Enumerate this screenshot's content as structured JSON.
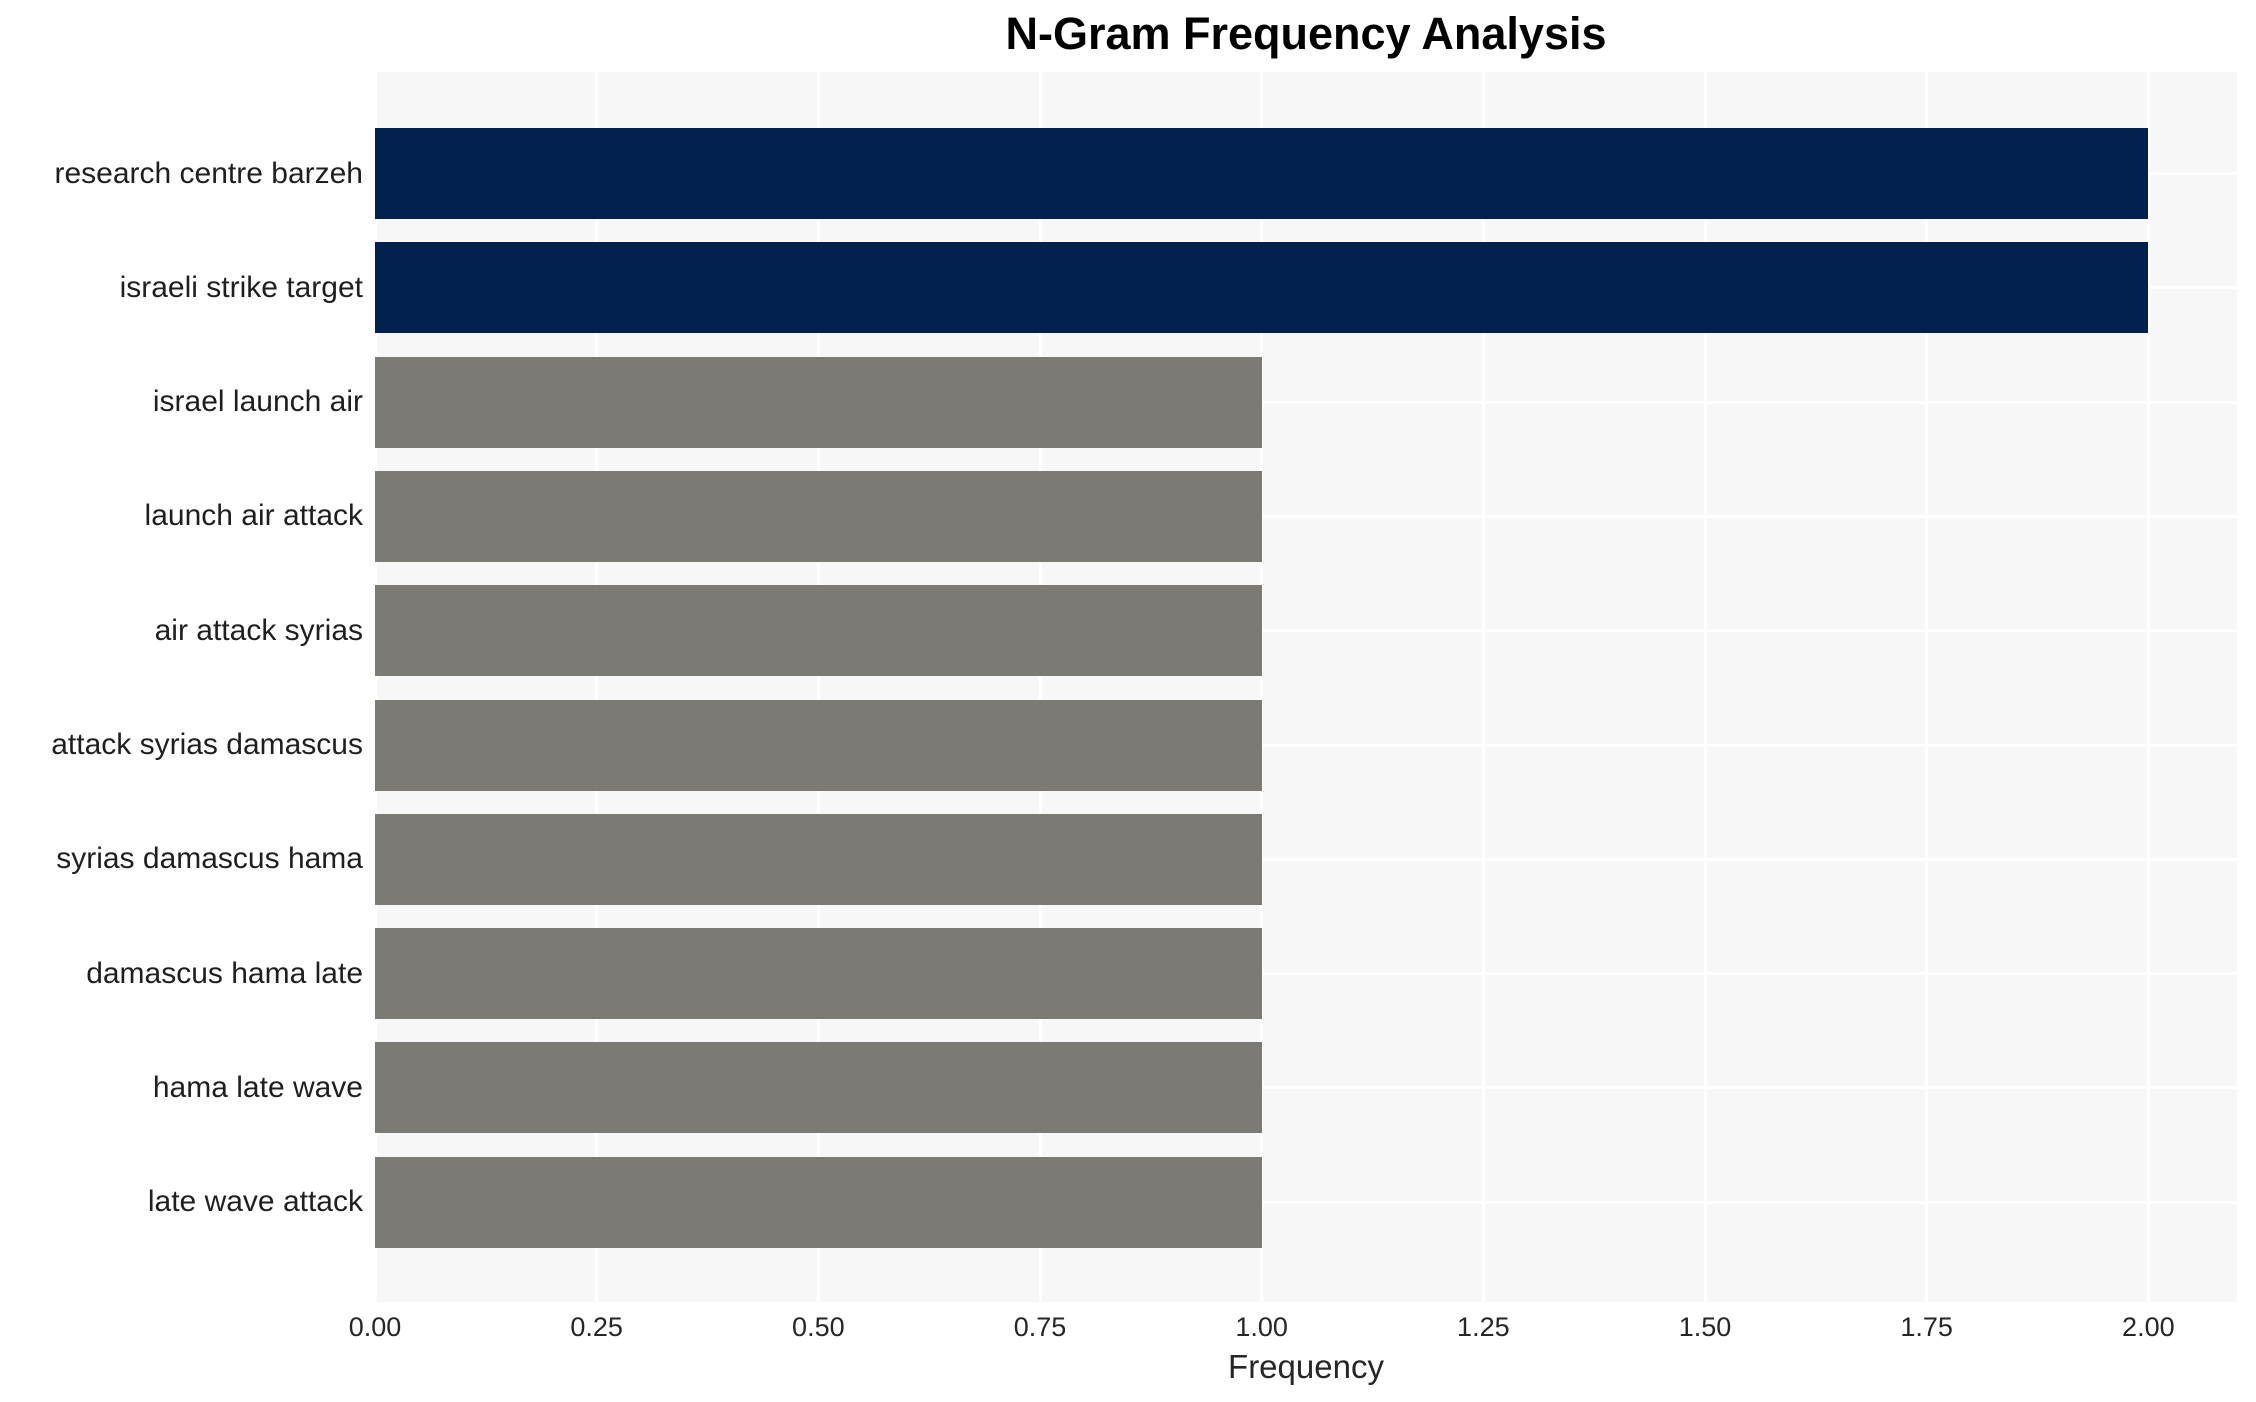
{
  "title": "N-Gram Frequency Analysis",
  "chart_data": {
    "type": "bar",
    "orientation": "horizontal",
    "title": "N-Gram Frequency Analysis",
    "xlabel": "Frequency",
    "ylabel": "",
    "categories": [
      "research centre barzeh",
      "israeli strike target",
      "israel launch air",
      "launch air attack",
      "air attack syrias",
      "attack syrias damascus",
      "syrias damascus hama",
      "damascus hama late",
      "hama late wave",
      "late wave attack"
    ],
    "values": [
      2,
      2,
      1,
      1,
      1,
      1,
      1,
      1,
      1,
      1
    ],
    "bar_colors": [
      "#02214E",
      "#02214E",
      "#7B7A75",
      "#7B7A75",
      "#7B7A75",
      "#7B7A75",
      "#7B7A75",
      "#7B7A75",
      "#7B7A75",
      "#7B7A75"
    ],
    "xlim": [
      0,
      2.1
    ],
    "xticks": [
      0.0,
      0.25,
      0.5,
      0.75,
      1.0,
      1.25,
      1.5,
      1.75,
      2.0
    ],
    "xtick_labels": [
      "0.00",
      "0.25",
      "0.50",
      "0.75",
      "1.00",
      "1.25",
      "1.50",
      "1.75",
      "2.00"
    ],
    "grid": true,
    "legend": false,
    "colors": {
      "bar_high": "#02214E",
      "bar_low": "#7B7A75",
      "plot_bg": "#F7F7F7",
      "grid_line": "#FFFFFF",
      "figure_bg": "#FFFFFF",
      "tick_text": "#262626",
      "label_text": "#1F1F1F",
      "title_text": "#000000"
    }
  }
}
